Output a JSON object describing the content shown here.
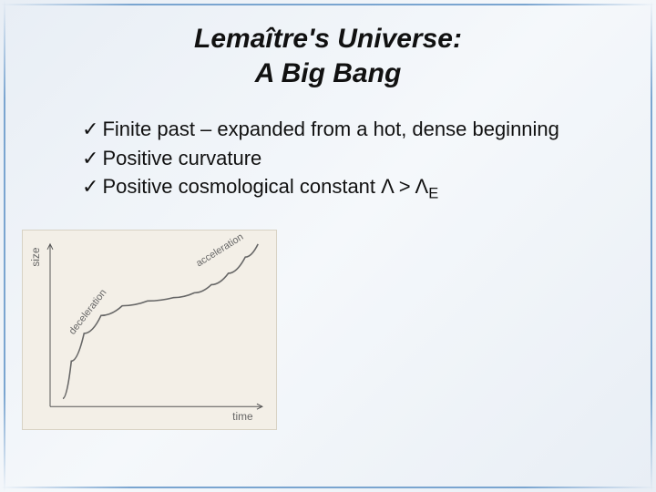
{
  "title": {
    "line1": "Lemaître's Universe:",
    "line2": "A Big Bang",
    "fontsize": 30
  },
  "bullets": {
    "fontsize": 22,
    "items": [
      "Finite past – expanded from a hot, dense beginning",
      "Positive curvature",
      "Positive cosmological constant Λ > Λ"
    ],
    "subscript_last": "E",
    "checkmark": "✓"
  },
  "chart": {
    "type": "line",
    "background_color": "#f3efe7",
    "axis_color": "#555555",
    "curve_color": "#666666",
    "xlabel": "time",
    "ylabel": "size",
    "label_fontsize": 12,
    "annotation_fontsize": 11,
    "ann_decel": "deceleration",
    "ann_accel": "acceleration",
    "xlim": [
      0,
      100
    ],
    "ylim": [
      0,
      100
    ],
    "curve_points": [
      [
        6,
        5
      ],
      [
        10,
        28
      ],
      [
        16,
        45
      ],
      [
        24,
        56
      ],
      [
        34,
        62
      ],
      [
        46,
        65
      ],
      [
        58,
        67
      ],
      [
        68,
        70
      ],
      [
        76,
        75
      ],
      [
        84,
        82
      ],
      [
        92,
        92
      ],
      [
        98,
        100
      ]
    ],
    "ann_decel_pos": [
      11,
      44,
      -52
    ],
    "ann_accel_pos": [
      70,
      86,
      -32
    ]
  },
  "colors": {
    "text": "#111111",
    "border": "#7aa5d0",
    "bg_light": "#f5f8fb",
    "bg_edge": "#e8eef5"
  }
}
